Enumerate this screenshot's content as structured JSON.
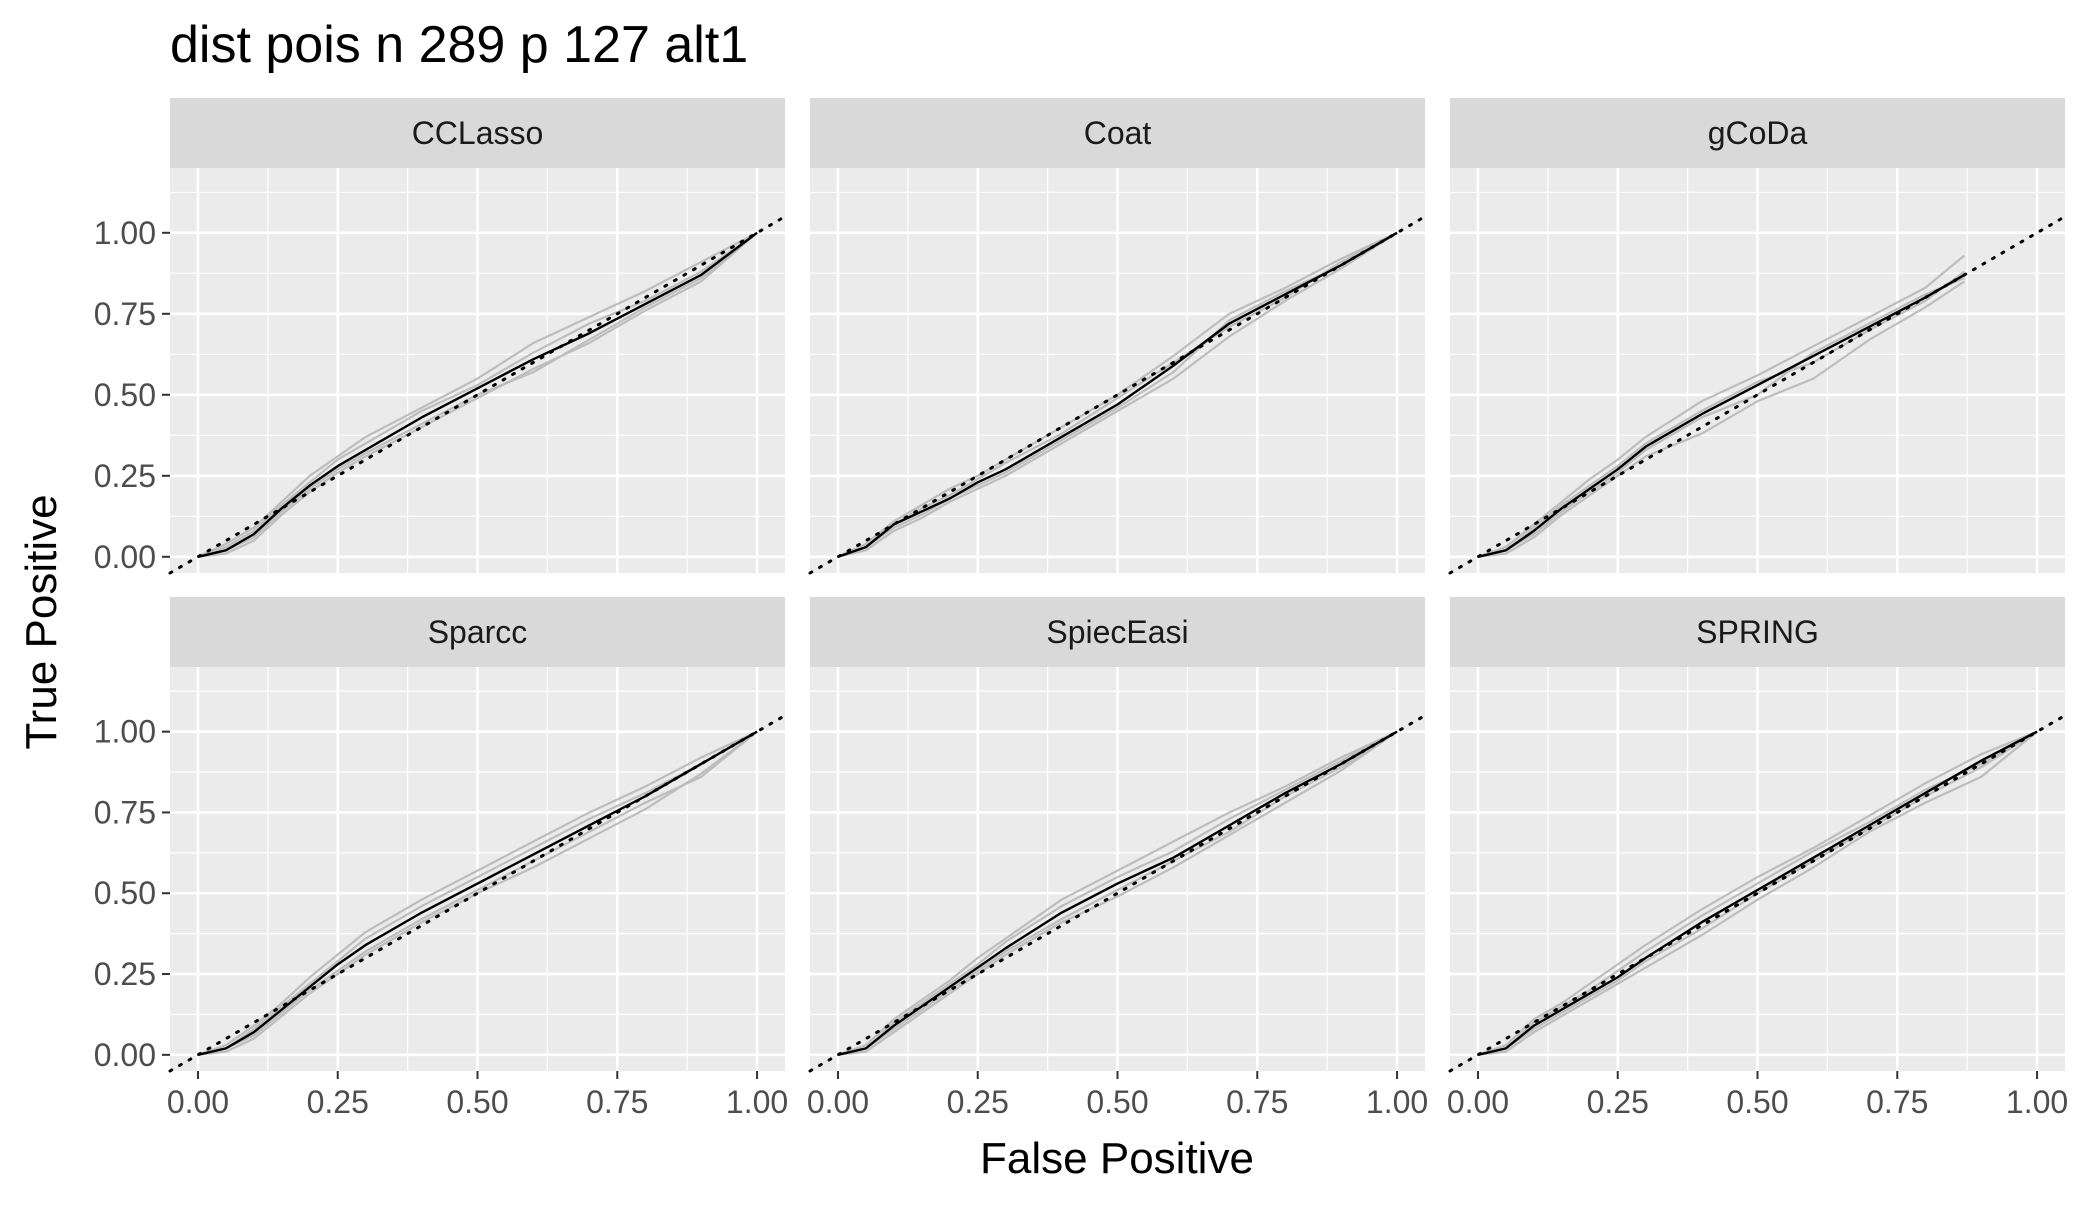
{
  "chart_data": {
    "type": "line",
    "title": "dist pois n 289 p 127 alt1",
    "xlabel": "False Positive",
    "ylabel": "True Positive",
    "xlim": [
      -0.05,
      1.05
    ],
    "ylim": [
      -0.05,
      1.2
    ],
    "x_ticks": [
      "0.00",
      "0.25",
      "0.50",
      "0.75",
      "1.00"
    ],
    "y_ticks": [
      "0.00",
      "0.25",
      "0.50",
      "0.75",
      "1.00"
    ],
    "grid": true,
    "reference_line": {
      "type": "dotted",
      "slope": 1,
      "intercept": 0
    },
    "colors": {
      "panel_bg": "#ebebeb",
      "strip_bg": "#d9d9d9",
      "grid": "#ffffff",
      "replicate_line": "#bdbdbd",
      "mean_line": "#000000"
    },
    "panels": [
      {
        "name": "CCLasso",
        "mean": {
          "x": [
            0,
            0.05,
            0.1,
            0.15,
            0.2,
            0.25,
            0.3,
            0.4,
            0.5,
            0.6,
            0.7,
            0.8,
            0.9,
            1.0
          ],
          "y": [
            0,
            0.02,
            0.07,
            0.15,
            0.22,
            0.28,
            0.33,
            0.43,
            0.52,
            0.61,
            0.69,
            0.78,
            0.87,
            1.0
          ]
        },
        "replicates": [
          [
            0,
            0.04,
            0.09,
            0.17,
            0.25,
            0.31,
            0.37,
            0.46,
            0.55,
            0.66,
            0.74,
            0.82,
            0.91,
            1.0
          ],
          [
            0,
            0.01,
            0.05,
            0.13,
            0.2,
            0.26,
            0.31,
            0.4,
            0.49,
            0.58,
            0.66,
            0.76,
            0.85,
            1.0
          ],
          [
            0,
            0.03,
            0.08,
            0.16,
            0.23,
            0.3,
            0.35,
            0.45,
            0.53,
            0.63,
            0.72,
            0.79,
            0.88,
            1.0
          ],
          [
            0,
            0.02,
            0.06,
            0.14,
            0.21,
            0.27,
            0.32,
            0.41,
            0.5,
            0.57,
            0.67,
            0.77,
            0.86,
            1.0
          ]
        ]
      },
      {
        "name": "Coat",
        "mean": {
          "x": [
            0,
            0.05,
            0.1,
            0.15,
            0.2,
            0.25,
            0.3,
            0.4,
            0.5,
            0.6,
            0.7,
            0.8,
            0.9,
            1.0
          ],
          "y": [
            0,
            0.03,
            0.1,
            0.14,
            0.18,
            0.23,
            0.27,
            0.37,
            0.47,
            0.59,
            0.72,
            0.81,
            0.9,
            1.0
          ]
        },
        "replicates": [
          [
            0,
            0.04,
            0.11,
            0.16,
            0.21,
            0.25,
            0.3,
            0.4,
            0.5,
            0.62,
            0.75,
            0.83,
            0.92,
            1.0
          ],
          [
            0,
            0.02,
            0.08,
            0.12,
            0.17,
            0.21,
            0.25,
            0.35,
            0.45,
            0.55,
            0.68,
            0.79,
            0.89,
            1.0
          ],
          [
            0,
            0.03,
            0.1,
            0.15,
            0.19,
            0.24,
            0.29,
            0.38,
            0.49,
            0.6,
            0.71,
            0.8,
            0.91,
            1.0
          ],
          [
            0,
            0.03,
            0.09,
            0.13,
            0.18,
            0.22,
            0.26,
            0.36,
            0.46,
            0.57,
            0.73,
            0.82,
            0.9,
            1.0
          ]
        ]
      },
      {
        "name": "gCoDa",
        "mean": {
          "x": [
            0,
            0.05,
            0.1,
            0.15,
            0.2,
            0.25,
            0.3,
            0.4,
            0.5,
            0.6,
            0.7,
            0.8,
            0.87
          ],
          "y": [
            0,
            0.02,
            0.08,
            0.15,
            0.21,
            0.27,
            0.34,
            0.44,
            0.53,
            0.62,
            0.71,
            0.8,
            0.87
          ]
        },
        "replicates": [
          [
            0,
            0.03,
            0.1,
            0.17,
            0.24,
            0.3,
            0.37,
            0.48,
            0.56,
            0.65,
            0.74,
            0.83,
            0.93
          ],
          [
            0,
            0.01,
            0.06,
            0.13,
            0.19,
            0.25,
            0.31,
            0.38,
            0.48,
            0.55,
            0.67,
            0.77,
            0.85
          ],
          [
            0,
            0.02,
            0.09,
            0.16,
            0.22,
            0.28,
            0.35,
            0.45,
            0.54,
            0.6,
            0.7,
            0.79,
            0.88
          ],
          [
            0,
            0.02,
            0.07,
            0.14,
            0.2,
            0.26,
            0.33,
            0.43,
            0.5,
            0.63,
            0.72,
            0.81,
            0.86
          ]
        ]
      },
      {
        "name": "Sparcc",
        "mean": {
          "x": [
            0,
            0.05,
            0.1,
            0.15,
            0.2,
            0.25,
            0.3,
            0.4,
            0.5,
            0.6,
            0.7,
            0.8,
            0.9,
            1.0
          ],
          "y": [
            0,
            0.02,
            0.07,
            0.14,
            0.21,
            0.28,
            0.34,
            0.44,
            0.53,
            0.62,
            0.71,
            0.8,
            0.9,
            1.0
          ]
        },
        "replicates": [
          [
            0,
            0.03,
            0.09,
            0.16,
            0.24,
            0.31,
            0.38,
            0.48,
            0.57,
            0.66,
            0.75,
            0.83,
            0.92,
            1.0
          ],
          [
            0,
            0.01,
            0.05,
            0.12,
            0.19,
            0.25,
            0.31,
            0.41,
            0.5,
            0.58,
            0.67,
            0.76,
            0.87,
            1.0
          ],
          [
            0,
            0.02,
            0.08,
            0.15,
            0.22,
            0.29,
            0.36,
            0.46,
            0.55,
            0.64,
            0.73,
            0.81,
            0.9,
            1.0
          ],
          [
            0,
            0.02,
            0.06,
            0.13,
            0.2,
            0.26,
            0.32,
            0.42,
            0.51,
            0.6,
            0.69,
            0.78,
            0.86,
            1.0
          ]
        ]
      },
      {
        "name": "SpiecEasi",
        "mean": {
          "x": [
            0,
            0.05,
            0.1,
            0.15,
            0.2,
            0.25,
            0.3,
            0.4,
            0.5,
            0.6,
            0.7,
            0.8,
            0.9,
            1.0
          ],
          "y": [
            0,
            0.02,
            0.09,
            0.15,
            0.21,
            0.27,
            0.33,
            0.44,
            0.53,
            0.61,
            0.71,
            0.81,
            0.9,
            1.0
          ]
        },
        "replicates": [
          [
            0,
            0.03,
            0.11,
            0.17,
            0.23,
            0.3,
            0.36,
            0.48,
            0.57,
            0.66,
            0.75,
            0.83,
            0.92,
            1.0
          ],
          [
            0,
            0.01,
            0.07,
            0.13,
            0.19,
            0.25,
            0.31,
            0.41,
            0.49,
            0.58,
            0.68,
            0.78,
            0.88,
            1.0
          ],
          [
            0,
            0.02,
            0.1,
            0.16,
            0.22,
            0.28,
            0.35,
            0.46,
            0.55,
            0.63,
            0.73,
            0.82,
            0.91,
            1.0
          ],
          [
            0,
            0.02,
            0.08,
            0.14,
            0.2,
            0.26,
            0.32,
            0.42,
            0.51,
            0.6,
            0.69,
            0.8,
            0.89,
            1.0
          ]
        ]
      },
      {
        "name": "SPRING",
        "mean": {
          "x": [
            0,
            0.05,
            0.1,
            0.15,
            0.2,
            0.25,
            0.3,
            0.4,
            0.5,
            0.6,
            0.7,
            0.8,
            0.9,
            1.0
          ],
          "y": [
            0,
            0.02,
            0.09,
            0.14,
            0.19,
            0.24,
            0.3,
            0.41,
            0.51,
            0.61,
            0.71,
            0.81,
            0.91,
            1.0
          ]
        },
        "replicates": [
          [
            0,
            0.03,
            0.11,
            0.16,
            0.22,
            0.28,
            0.34,
            0.45,
            0.55,
            0.64,
            0.74,
            0.84,
            0.93,
            1.0
          ],
          [
            0,
            0.01,
            0.07,
            0.12,
            0.17,
            0.22,
            0.27,
            0.37,
            0.48,
            0.58,
            0.69,
            0.78,
            0.86,
            1.0
          ],
          [
            0,
            0.02,
            0.1,
            0.15,
            0.2,
            0.26,
            0.32,
            0.43,
            0.53,
            0.63,
            0.72,
            0.82,
            0.9,
            1.0
          ],
          [
            0,
            0.02,
            0.08,
            0.13,
            0.18,
            0.23,
            0.29,
            0.39,
            0.5,
            0.6,
            0.7,
            0.8,
            0.89,
            1.0
          ]
        ]
      }
    ]
  }
}
